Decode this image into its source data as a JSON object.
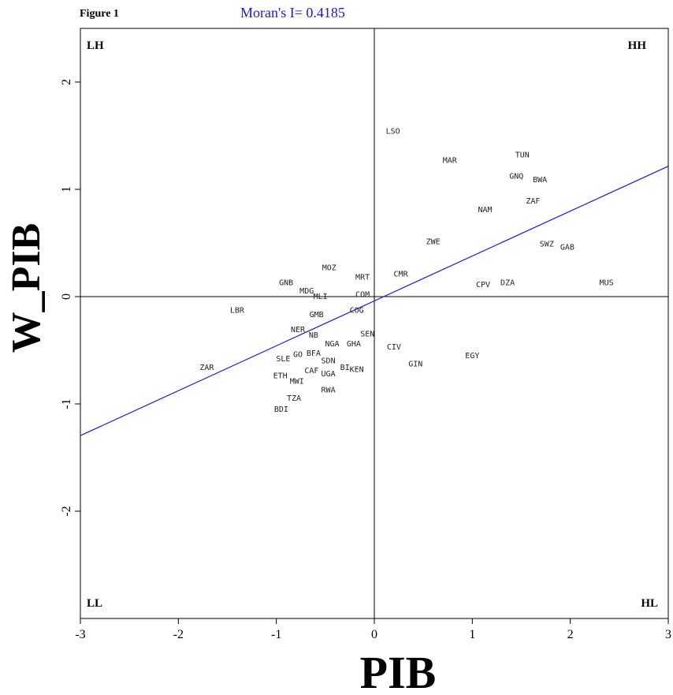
{
  "figure_label": "Figure 1",
  "chart_data": {
    "type": "scatter",
    "title": "Moran's I= 0.4185",
    "xlabel": "PIB",
    "ylabel": "W_PIB",
    "xlim": [
      -3,
      3
    ],
    "ylim": [
      -3,
      2.5
    ],
    "xticks": [
      "-3",
      "-2",
      "-1",
      "0",
      "1",
      "2",
      "3"
    ],
    "yticks": [
      "-2",
      "-1",
      "0",
      "1",
      "2"
    ],
    "grid": false,
    "quadrants": {
      "top_left": "LH",
      "top_right": "HH",
      "bottom_left": "LL",
      "bottom_right": "HL"
    },
    "regression_line": {
      "slope": 0.4185,
      "intercept": -0.04,
      "color": "#1a1adb"
    },
    "points": [
      {
        "label": "LSO",
        "x": 0.19,
        "y": 1.54
      },
      {
        "label": "MAR",
        "x": 0.77,
        "y": 1.27
      },
      {
        "label": "TUN",
        "x": 1.51,
        "y": 1.32
      },
      {
        "label": "GNQ",
        "x": 1.45,
        "y": 1.12
      },
      {
        "label": "BWA",
        "x": 1.69,
        "y": 1.09
      },
      {
        "label": "ZAF",
        "x": 1.62,
        "y": 0.89
      },
      {
        "label": "NAM",
        "x": 1.13,
        "y": 0.81
      },
      {
        "label": "ZWE",
        "x": 0.6,
        "y": 0.51
      },
      {
        "label": "SWZ",
        "x": 1.76,
        "y": 0.49
      },
      {
        "label": "GAB",
        "x": 1.97,
        "y": 0.46
      },
      {
        "label": "CMR",
        "x": 0.27,
        "y": 0.21
      },
      {
        "label": "CPV",
        "x": 1.11,
        "y": 0.11
      },
      {
        "label": "DZA",
        "x": 1.36,
        "y": 0.13
      },
      {
        "label": "MUS",
        "x": 2.37,
        "y": 0.13
      },
      {
        "label": "MOZ",
        "x": -0.46,
        "y": 0.27
      },
      {
        "label": "GNB",
        "x": -0.9,
        "y": 0.13
      },
      {
        "label": "MRT",
        "x": -0.12,
        "y": 0.18
      },
      {
        "label": "MDG",
        "x": -0.69,
        "y": 0.05
      },
      {
        "label": "MLI",
        "x": -0.55,
        "y": 0.0
      },
      {
        "label": "COM",
        "x": -0.12,
        "y": 0.02
      },
      {
        "label": "LBR",
        "x": -1.4,
        "y": -0.13
      },
      {
        "label": "GMB",
        "x": -0.59,
        "y": -0.17
      },
      {
        "label": "COG",
        "x": -0.18,
        "y": -0.13
      },
      {
        "label": "NER",
        "x": -0.78,
        "y": -0.31
      },
      {
        "label": "NB",
        "x": -0.62,
        "y": -0.36
      },
      {
        "label": "SEN",
        "x": -0.07,
        "y": -0.35
      },
      {
        "label": "NGA",
        "x": -0.43,
        "y": -0.44
      },
      {
        "label": "GHA",
        "x": -0.21,
        "y": -0.44
      },
      {
        "label": "CIV",
        "x": 0.2,
        "y": -0.47
      },
      {
        "label": "EGY",
        "x": 1.0,
        "y": -0.55
      },
      {
        "label": "ZAR",
        "x": -1.71,
        "y": -0.66
      },
      {
        "label": "SLE",
        "x": -0.93,
        "y": -0.58
      },
      {
        "label": "GO",
        "x": -0.78,
        "y": -0.54
      },
      {
        "label": "BFA",
        "x": -0.62,
        "y": -0.53
      },
      {
        "label": "SDN",
        "x": -0.47,
        "y": -0.6
      },
      {
        "label": "GIN",
        "x": 0.42,
        "y": -0.63
      },
      {
        "label": "ETH",
        "x": -0.96,
        "y": -0.74
      },
      {
        "label": "CAF",
        "x": -0.64,
        "y": -0.69
      },
      {
        "label": "UGA",
        "x": -0.47,
        "y": -0.72
      },
      {
        "label": "BI",
        "x": -0.3,
        "y": -0.66
      },
      {
        "label": "KEN",
        "x": -0.18,
        "y": -0.68
      },
      {
        "label": "MWI",
        "x": -0.79,
        "y": -0.79
      },
      {
        "label": "RWA",
        "x": -0.47,
        "y": -0.87
      },
      {
        "label": "TZA",
        "x": -0.82,
        "y": -0.95
      },
      {
        "label": "BDI",
        "x": -0.95,
        "y": -1.05
      }
    ]
  }
}
